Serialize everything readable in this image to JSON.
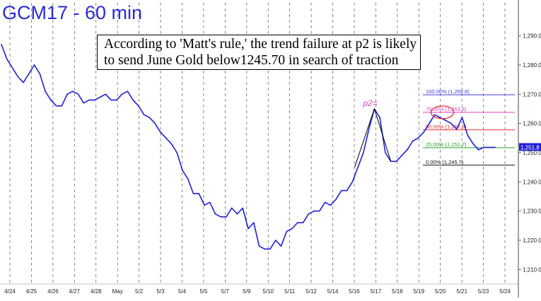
{
  "chart_data": {
    "type": "line",
    "title": "GCM17 - 60 min",
    "annotation_lines": [
      "According to 'Matt's rule,' the trend failure at p2 is likely",
      "to send June Gold below1245.70 in search of traction"
    ],
    "pivot_label": "p2=",
    "ylim": [
      1205,
      1295
    ],
    "y_ticks": [
      "1,210.0",
      "1,220.0",
      "1,230.0",
      "1,240.0",
      "1,250.0",
      "1,260.0",
      "1,270.0",
      "1,280.0",
      "1,290.0"
    ],
    "y_tick_values": [
      1210,
      1220,
      1230,
      1240,
      1250,
      1260,
      1270,
      1280,
      1290
    ],
    "x_ticks": [
      "4/24",
      "4/25",
      "4/26",
      "4/27",
      "4/28",
      "May",
      "5/2",
      "5/3",
      "5/4",
      "5/5",
      "5/7",
      "5/9",
      "5/10",
      "5/11",
      "5/12",
      "5/14",
      "5/16",
      "5/17",
      "5/18",
      "5/19",
      "5/20",
      "5/21",
      "5/23",
      "5/24"
    ],
    "last_price": "1,251.8",
    "last_value": 1251.8,
    "grid": "vertical dashed",
    "fib_levels": [
      {
        "label": "100.00% (1,269.8)",
        "value": 1269.8,
        "color": "#3b3bdd"
      },
      {
        "label": "75.00% (1,263.8)",
        "value": 1263.8,
        "color": "#e040c0"
      },
      {
        "label": "50.00% (1,257.8)",
        "value": 1257.8,
        "color": "#e03030"
      },
      {
        "label": "25.00% (1,251.7)",
        "value": 1251.7,
        "color": "#2e9e2e"
      },
      {
        "label": "0.00% (1,245.7)",
        "value": 1245.7,
        "color": "#111111"
      }
    ],
    "series": [
      {
        "x": [
          0,
          0.5,
          1,
          1.5,
          2,
          2.5,
          3,
          3.5,
          4,
          4.5,
          5,
          5.5,
          6,
          6.5,
          7,
          7.5,
          8,
          8.5,
          9,
          9.5,
          10,
          10.5,
          11,
          11.5,
          12,
          12.5,
          13,
          13.5,
          14,
          14.5,
          15,
          15.5,
          16,
          16.5,
          17,
          17.5,
          18,
          18.5,
          19,
          19.5,
          20,
          20.5,
          21,
          21.5,
          22,
          22.5,
          23,
          23.5,
          24,
          24.5,
          25,
          25.5,
          26,
          26.5,
          27,
          27.5,
          28,
          28.5,
          29,
          29.5,
          30,
          30.5,
          31,
          31.5,
          32,
          32.5,
          33,
          33.5,
          34,
          34.5,
          35,
          35.5,
          36,
          36.5,
          37,
          37.5,
          38,
          38.5,
          39,
          39.5,
          40,
          40.5,
          41,
          41.5,
          42,
          42.5,
          43,
          43.5,
          44,
          44.5,
          45
        ],
        "values": [
          1287,
          1282,
          1279,
          1276,
          1274,
          1277,
          1280,
          1277,
          1271,
          1268,
          1266,
          1266,
          1270,
          1271,
          1270,
          1267,
          1268,
          1268,
          1269,
          1270,
          1268,
          1268,
          1270,
          1271,
          1268,
          1266,
          1263,
          1262,
          1260,
          1257,
          1255,
          1253,
          1250,
          1244,
          1241,
          1236,
          1236,
          1232,
          1233,
          1229,
          1228,
          1228,
          1231,
          1229,
          1231,
          1224,
          1226,
          1218,
          1217,
          1217,
          1220,
          1218,
          1223,
          1224,
          1226,
          1226,
          1229,
          1230,
          1230,
          1233,
          1232,
          1234,
          1237,
          1237,
          1240,
          1245,
          1250,
          1258,
          1265,
          1262,
          1250,
          1247,
          1247,
          1249,
          1251,
          1254,
          1255,
          1257,
          1260,
          1263,
          1262,
          1261,
          1260,
          1258,
          1262,
          1256,
          1253,
          1251,
          1251.8,
          1251.8,
          1251.8
        ]
      }
    ]
  }
}
